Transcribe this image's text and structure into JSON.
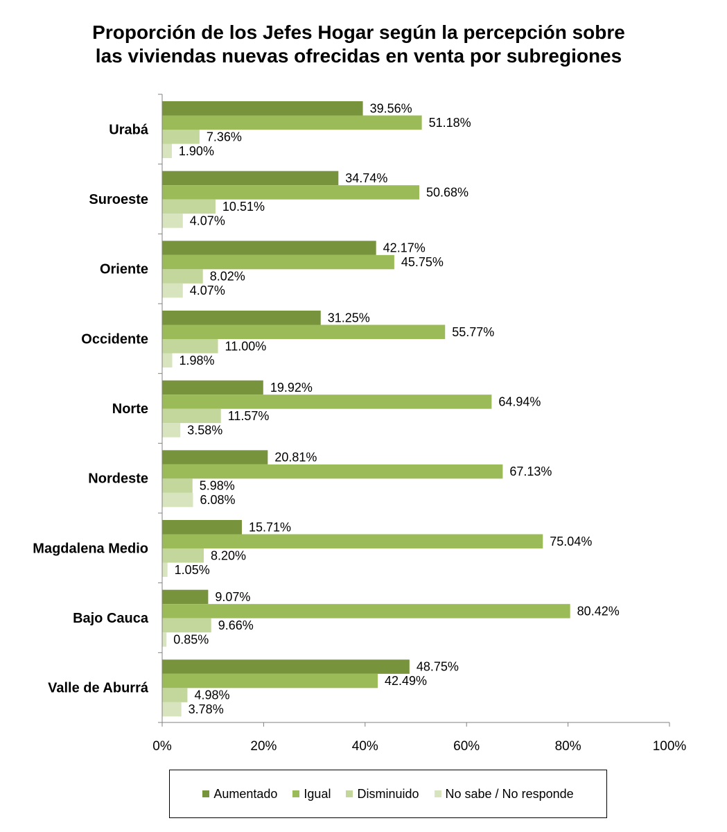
{
  "title_lines": [
    "Proporción de los Jefes Hogar según la percepción sobre",
    "las viviendas nuevas ofrecidas en venta  por subregiones"
  ],
  "chart_data": {
    "type": "bar",
    "orientation": "horizontal",
    "title": "Proporción de los Jefes Hogar según la percepción sobre las viviendas nuevas ofrecidas en venta  por subregiones",
    "xlabel": "",
    "ylabel": "",
    "xlim": [
      0,
      100
    ],
    "x_ticks": [
      "0%",
      "20%",
      "40%",
      "60%",
      "80%",
      "100%"
    ],
    "grid": false,
    "legend_position": "bottom",
    "categories": [
      "Urabá",
      "Suroeste",
      "Oriente",
      "Occidente",
      "Norte",
      "Nordeste",
      "Magdalena Medio",
      "Bajo Cauca",
      "Valle de Aburrá"
    ],
    "series": [
      {
        "name": "Aumentado",
        "color": "#77933C",
        "values": [
          39.56,
          34.74,
          42.17,
          31.25,
          19.92,
          20.81,
          15.71,
          9.07,
          48.75
        ],
        "labels": [
          "39.56%",
          "34.74%",
          "42.17%",
          "31.25%",
          "19.92%",
          "20.81%",
          "15.71%",
          "9.07%",
          "48.75%"
        ]
      },
      {
        "name": "Igual",
        "color": "#9BBB59",
        "values": [
          51.18,
          50.68,
          45.75,
          55.77,
          64.94,
          67.13,
          75.04,
          80.42,
          42.49
        ],
        "labels": [
          "51.18%",
          "50.68%",
          "45.75%",
          "55.77%",
          "64.94%",
          "67.13%",
          "75.04%",
          "80.42%",
          "42.49%"
        ]
      },
      {
        "name": "Disminuido",
        "color": "#C3D69B",
        "values": [
          7.36,
          10.51,
          8.02,
          11.0,
          11.57,
          5.98,
          8.2,
          9.66,
          4.98
        ],
        "labels": [
          "7.36%",
          "10.51%",
          "8.02%",
          "11.00%",
          "11.57%",
          "5.98%",
          "8.20%",
          "9.66%",
          "4.98%"
        ]
      },
      {
        "name": "No sabe / No responde",
        "color": "#D7E4BD",
        "values": [
          1.9,
          4.07,
          4.07,
          1.98,
          3.58,
          6.08,
          1.05,
          0.85,
          3.78
        ],
        "labels": [
          "1.90%",
          "4.07%",
          "4.07%",
          "1.98%",
          "3.58%",
          "6.08%",
          "1.05%",
          "0.85%",
          "3.78%"
        ]
      }
    ]
  }
}
